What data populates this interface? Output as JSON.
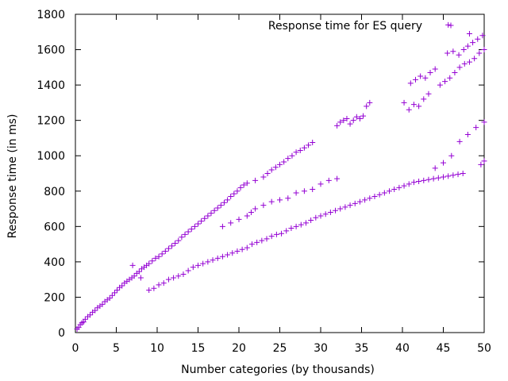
{
  "chart_data": {
    "type": "scatter",
    "title": "",
    "xlabel": "Number categories (by thousands)",
    "ylabel": "Response time (in ms)",
    "xlim": [
      0,
      50
    ],
    "ylim": [
      0,
      1800
    ],
    "xticks": [
      0,
      5,
      10,
      15,
      20,
      25,
      30,
      35,
      40,
      45,
      50
    ],
    "yticks": [
      0,
      200,
      400,
      600,
      800,
      1000,
      1200,
      1400,
      1600,
      1800
    ],
    "grid": false,
    "legend_position": "top-right",
    "series": [
      {
        "name": "Response time for ES query",
        "color": "#9400d3",
        "marker": "plus",
        "points": [
          [
            0.2,
            20
          ],
          [
            0.4,
            30
          ],
          [
            0.6,
            45
          ],
          [
            0.8,
            55
          ],
          [
            1.0,
            60
          ],
          [
            1.2,
            75
          ],
          [
            1.5,
            90
          ],
          [
            1.8,
            100
          ],
          [
            2.1,
            115
          ],
          [
            2.4,
            125
          ],
          [
            2.7,
            140
          ],
          [
            3.0,
            150
          ],
          [
            3.3,
            160
          ],
          [
            3.6,
            175
          ],
          [
            3.9,
            185
          ],
          [
            4.2,
            195
          ],
          [
            4.5,
            210
          ],
          [
            4.8,
            225
          ],
          [
            5.1,
            240
          ],
          [
            5.4,
            255
          ],
          [
            5.7,
            265
          ],
          [
            6.0,
            280
          ],
          [
            6.3,
            290
          ],
          [
            6.6,
            300
          ],
          [
            6.9,
            310
          ],
          [
            7.2,
            320
          ],
          [
            7.5,
            335
          ],
          [
            7.8,
            345
          ],
          [
            8.1,
            360
          ],
          [
            8.4,
            370
          ],
          [
            8.7,
            380
          ],
          [
            9.0,
            390
          ],
          [
            9.4,
            405
          ],
          [
            9.8,
            420
          ],
          [
            10.2,
            430
          ],
          [
            10.6,
            445
          ],
          [
            11.0,
            460
          ],
          [
            11.4,
            475
          ],
          [
            11.8,
            490
          ],
          [
            12.2,
            505
          ],
          [
            12.6,
            520
          ],
          [
            13.0,
            540
          ],
          [
            13.4,
            555
          ],
          [
            13.8,
            570
          ],
          [
            14.2,
            585
          ],
          [
            14.6,
            600
          ],
          [
            15.0,
            615
          ],
          [
            15.4,
            630
          ],
          [
            15.8,
            645
          ],
          [
            16.2,
            660
          ],
          [
            16.6,
            675
          ],
          [
            17.0,
            690
          ],
          [
            17.4,
            705
          ],
          [
            17.8,
            720
          ],
          [
            18.2,
            735
          ],
          [
            18.6,
            750
          ],
          [
            19.0,
            770
          ],
          [
            19.4,
            785
          ],
          [
            19.8,
            800
          ],
          [
            20.2,
            820
          ],
          [
            20.6,
            835
          ],
          [
            21.0,
            845
          ],
          [
            22.0,
            860
          ],
          [
            23.0,
            880
          ],
          [
            23.5,
            900
          ],
          [
            24.0,
            920
          ],
          [
            24.5,
            935
          ],
          [
            25.0,
            950
          ],
          [
            25.5,
            965
          ],
          [
            26.0,
            985
          ],
          [
            26.5,
            1000
          ],
          [
            27.0,
            1020
          ],
          [
            27.5,
            1030
          ],
          [
            28.0,
            1045
          ],
          [
            28.5,
            1060
          ],
          [
            29.0,
            1075
          ],
          [
            32.0,
            1170
          ],
          [
            32.4,
            1190
          ],
          [
            32.8,
            1200
          ],
          [
            33.2,
            1210
          ],
          [
            33.6,
            1180
          ],
          [
            34.0,
            1200
          ],
          [
            34.4,
            1220
          ],
          [
            34.8,
            1210
          ],
          [
            35.2,
            1225
          ],
          [
            35.6,
            1280
          ],
          [
            36.0,
            1300
          ],
          [
            40.2,
            1300
          ],
          [
            40.8,
            1260
          ],
          [
            41.4,
            1290
          ],
          [
            42.0,
            1280
          ],
          [
            42.6,
            1320
          ],
          [
            43.2,
            1350
          ],
          [
            41.0,
            1410
          ],
          [
            41.6,
            1430
          ],
          [
            42.2,
            1450
          ],
          [
            42.8,
            1440
          ],
          [
            43.4,
            1470
          ],
          [
            44.0,
            1490
          ],
          [
            44.6,
            1400
          ],
          [
            45.2,
            1420
          ],
          [
            45.8,
            1440
          ],
          [
            46.4,
            1470
          ],
          [
            47.0,
            1500
          ],
          [
            47.6,
            1520
          ],
          [
            48.2,
            1530
          ],
          [
            48.8,
            1550
          ],
          [
            49.4,
            1580
          ],
          [
            50.0,
            1600
          ],
          [
            45.5,
            1580
          ],
          [
            46.2,
            1590
          ],
          [
            46.9,
            1570
          ],
          [
            47.5,
            1600
          ],
          [
            48.0,
            1620
          ],
          [
            48.6,
            1640
          ],
          [
            49.2,
            1660
          ],
          [
            49.8,
            1680
          ],
          [
            45.6,
            1740
          ],
          [
            48.2,
            1690
          ],
          [
            7.0,
            380
          ],
          [
            8.0,
            310
          ],
          [
            9.0,
            240
          ],
          [
            9.6,
            250
          ],
          [
            10.2,
            270
          ],
          [
            10.8,
            280
          ],
          [
            11.4,
            300
          ],
          [
            12.0,
            310
          ],
          [
            12.6,
            320
          ],
          [
            13.2,
            330
          ],
          [
            13.8,
            350
          ],
          [
            14.4,
            370
          ],
          [
            15.0,
            380
          ],
          [
            15.6,
            390
          ],
          [
            16.2,
            400
          ],
          [
            16.8,
            410
          ],
          [
            17.4,
            420
          ],
          [
            18.0,
            430
          ],
          [
            18.6,
            440
          ],
          [
            19.2,
            450
          ],
          [
            19.8,
            460
          ],
          [
            20.4,
            470
          ],
          [
            21.0,
            480
          ],
          [
            21.6,
            500
          ],
          [
            22.2,
            510
          ],
          [
            22.8,
            520
          ],
          [
            23.4,
            530
          ],
          [
            24.0,
            545
          ],
          [
            24.6,
            555
          ],
          [
            25.2,
            560
          ],
          [
            25.8,
            575
          ],
          [
            26.4,
            590
          ],
          [
            27.0,
            600
          ],
          [
            27.6,
            610
          ],
          [
            28.2,
            620
          ],
          [
            28.8,
            635
          ],
          [
            29.4,
            650
          ],
          [
            30.0,
            660
          ],
          [
            30.6,
            670
          ],
          [
            31.2,
            680
          ],
          [
            31.8,
            690
          ],
          [
            32.4,
            700
          ],
          [
            33.0,
            710
          ],
          [
            33.6,
            720
          ],
          [
            34.2,
            730
          ],
          [
            34.8,
            740
          ],
          [
            35.4,
            750
          ],
          [
            36.0,
            760
          ],
          [
            36.6,
            770
          ],
          [
            37.2,
            780
          ],
          [
            37.8,
            790
          ],
          [
            38.4,
            800
          ],
          [
            39.0,
            810
          ],
          [
            39.6,
            820
          ],
          [
            40.2,
            830
          ],
          [
            40.8,
            840
          ],
          [
            41.4,
            850
          ],
          [
            42.0,
            855
          ],
          [
            42.6,
            860
          ],
          [
            43.2,
            865
          ],
          [
            43.8,
            870
          ],
          [
            44.4,
            875
          ],
          [
            45.0,
            880
          ],
          [
            45.6,
            885
          ],
          [
            46.2,
            890
          ],
          [
            46.8,
            895
          ],
          [
            47.4,
            900
          ],
          [
            18.0,
            600
          ],
          [
            19.0,
            620
          ],
          [
            20.0,
            640
          ],
          [
            21.0,
            660
          ],
          [
            21.5,
            680
          ],
          [
            22.0,
            700
          ],
          [
            23.0,
            720
          ],
          [
            24.0,
            740
          ],
          [
            25.0,
            750
          ],
          [
            26.0,
            760
          ],
          [
            27.0,
            790
          ],
          [
            28.0,
            800
          ],
          [
            29.0,
            810
          ],
          [
            30.0,
            840
          ],
          [
            31.0,
            860
          ],
          [
            32.0,
            870
          ],
          [
            44.0,
            930
          ],
          [
            45.0,
            960
          ],
          [
            46.0,
            1000
          ],
          [
            47.0,
            1080
          ],
          [
            48.0,
            1120
          ],
          [
            49.0,
            1160
          ],
          [
            50.0,
            1190
          ],
          [
            49.6,
            950
          ],
          [
            50.0,
            970
          ]
        ]
      }
    ]
  }
}
